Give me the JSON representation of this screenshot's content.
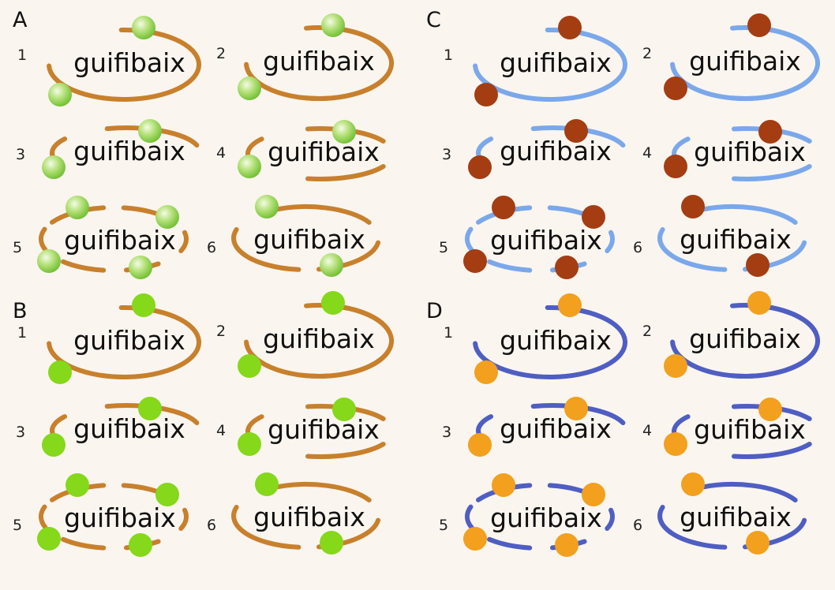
{
  "logo_text": "guifibaix",
  "sections": [
    {
      "letter": "A",
      "ring_color": "#c8802c",
      "dot_color": "#8fd44a",
      "dot_gradient": true,
      "variants": [
        {
          "number": "1"
        },
        {
          "number": "2"
        },
        {
          "number": "3"
        },
        {
          "number": "4"
        },
        {
          "number": "5"
        },
        {
          "number": "6"
        }
      ]
    },
    {
      "letter": "B",
      "ring_color": "#c8802c",
      "dot_color": "#85d81a",
      "dot_gradient": false,
      "variants": [
        {
          "number": "1"
        },
        {
          "number": "2"
        },
        {
          "number": "3"
        },
        {
          "number": "4"
        },
        {
          "number": "5"
        },
        {
          "number": "6"
        }
      ]
    },
    {
      "letter": "C",
      "ring_color": "#7aa8ea",
      "dot_color": "#a43d12",
      "dot_gradient": false,
      "variants": [
        {
          "number": "1"
        },
        {
          "number": "2"
        },
        {
          "number": "3"
        },
        {
          "number": "4"
        },
        {
          "number": "5"
        },
        {
          "number": "6"
        }
      ]
    },
    {
      "letter": "D",
      "ring_color": "#4f5ec2",
      "dot_color": "#f2a01e",
      "dot_gradient": false,
      "variants": [
        {
          "number": "1"
        },
        {
          "number": "2"
        },
        {
          "number": "3"
        },
        {
          "number": "4"
        },
        {
          "number": "5"
        },
        {
          "number": "6"
        }
      ]
    }
  ]
}
